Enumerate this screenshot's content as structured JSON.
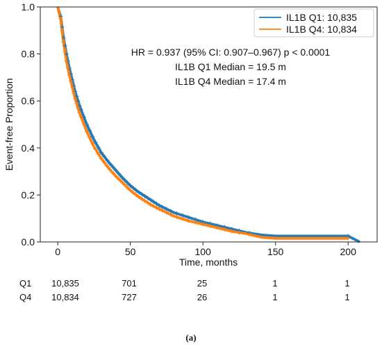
{
  "chart_data": {
    "type": "line",
    "title": "",
    "xlabel": "Time, months",
    "ylabel": "Event-free Proportion",
    "xlim": [
      -12,
      220
    ],
    "ylim": [
      0,
      1.0
    ],
    "xticks": [
      0,
      50,
      100,
      150,
      200
    ],
    "xtick_labels": [
      "0",
      "50",
      "100",
      "150",
      "200"
    ],
    "yticks": [
      0.0,
      0.2,
      0.4,
      0.6,
      0.8,
      1.0
    ],
    "ytick_labels": [
      "0.0",
      "0.2",
      "0.4",
      "0.6",
      "0.8",
      "1.0"
    ],
    "grid": false,
    "legend_position": "top-right",
    "series": [
      {
        "name": "IL1B Q1: 10,835",
        "color": "#1f77b4",
        "x": [
          0,
          2,
          4,
          6,
          8,
          10,
          12,
          15,
          20,
          25,
          30,
          35,
          40,
          45,
          50,
          55,
          60,
          65,
          70,
          75,
          80,
          90,
          100,
          110,
          120,
          130,
          140,
          150,
          160,
          180,
          200,
          208
        ],
        "y": [
          1.0,
          0.96,
          0.87,
          0.8,
          0.74,
          0.69,
          0.64,
          0.58,
          0.5,
          0.435,
          0.38,
          0.34,
          0.305,
          0.27,
          0.24,
          0.215,
          0.195,
          0.175,
          0.155,
          0.14,
          0.125,
          0.105,
          0.085,
          0.07,
          0.055,
          0.04,
          0.03,
          0.025,
          0.025,
          0.025,
          0.025,
          0.0
        ]
      },
      {
        "name": "IL1B Q4: 10,834",
        "color": "#ff7f0e",
        "x": [
          0,
          2,
          4,
          6,
          8,
          10,
          12,
          15,
          20,
          25,
          30,
          35,
          40,
          45,
          50,
          55,
          60,
          65,
          70,
          75,
          80,
          90,
          100,
          110,
          120,
          130,
          140,
          150,
          160,
          180,
          200
        ],
        "y": [
          1.0,
          0.95,
          0.85,
          0.77,
          0.71,
          0.66,
          0.61,
          0.55,
          0.47,
          0.405,
          0.355,
          0.315,
          0.28,
          0.25,
          0.22,
          0.195,
          0.175,
          0.155,
          0.14,
          0.125,
          0.11,
          0.09,
          0.075,
          0.06,
          0.045,
          0.035,
          0.02,
          0.015,
          0.015,
          0.015,
          0.015
        ]
      }
    ],
    "censor_marks": {
      "note_free": "",
      "x": [
        2,
        3,
        4,
        5,
        6,
        7,
        8,
        9,
        10,
        11,
        12,
        13,
        14,
        15,
        16,
        18,
        20,
        22,
        24,
        26,
        28,
        30,
        32,
        34,
        36,
        38,
        40,
        42,
        44,
        46,
        48,
        50,
        52,
        54,
        56,
        58,
        60,
        62,
        64,
        66,
        68,
        70,
        72,
        75,
        78,
        82,
        86,
        90,
        95,
        100,
        105,
        110,
        115,
        120,
        125,
        132,
        200
      ]
    },
    "annotations": [
      "HR = 0.937 (95% CI: 0.907–0.967) p < 0.0001",
      "IL1B Q1 Median = 19.5 m",
      "IL1B Q4 Median = 17.4 m"
    ]
  },
  "risk_table": {
    "rows": [
      {
        "label": "Q1",
        "values": [
          "10,835",
          "701",
          "25",
          "1",
          "1"
        ]
      },
      {
        "label": "Q4",
        "values": [
          "10,834",
          "727",
          "26",
          "1",
          "1"
        ]
      }
    ]
  },
  "panel_label": "(a)"
}
